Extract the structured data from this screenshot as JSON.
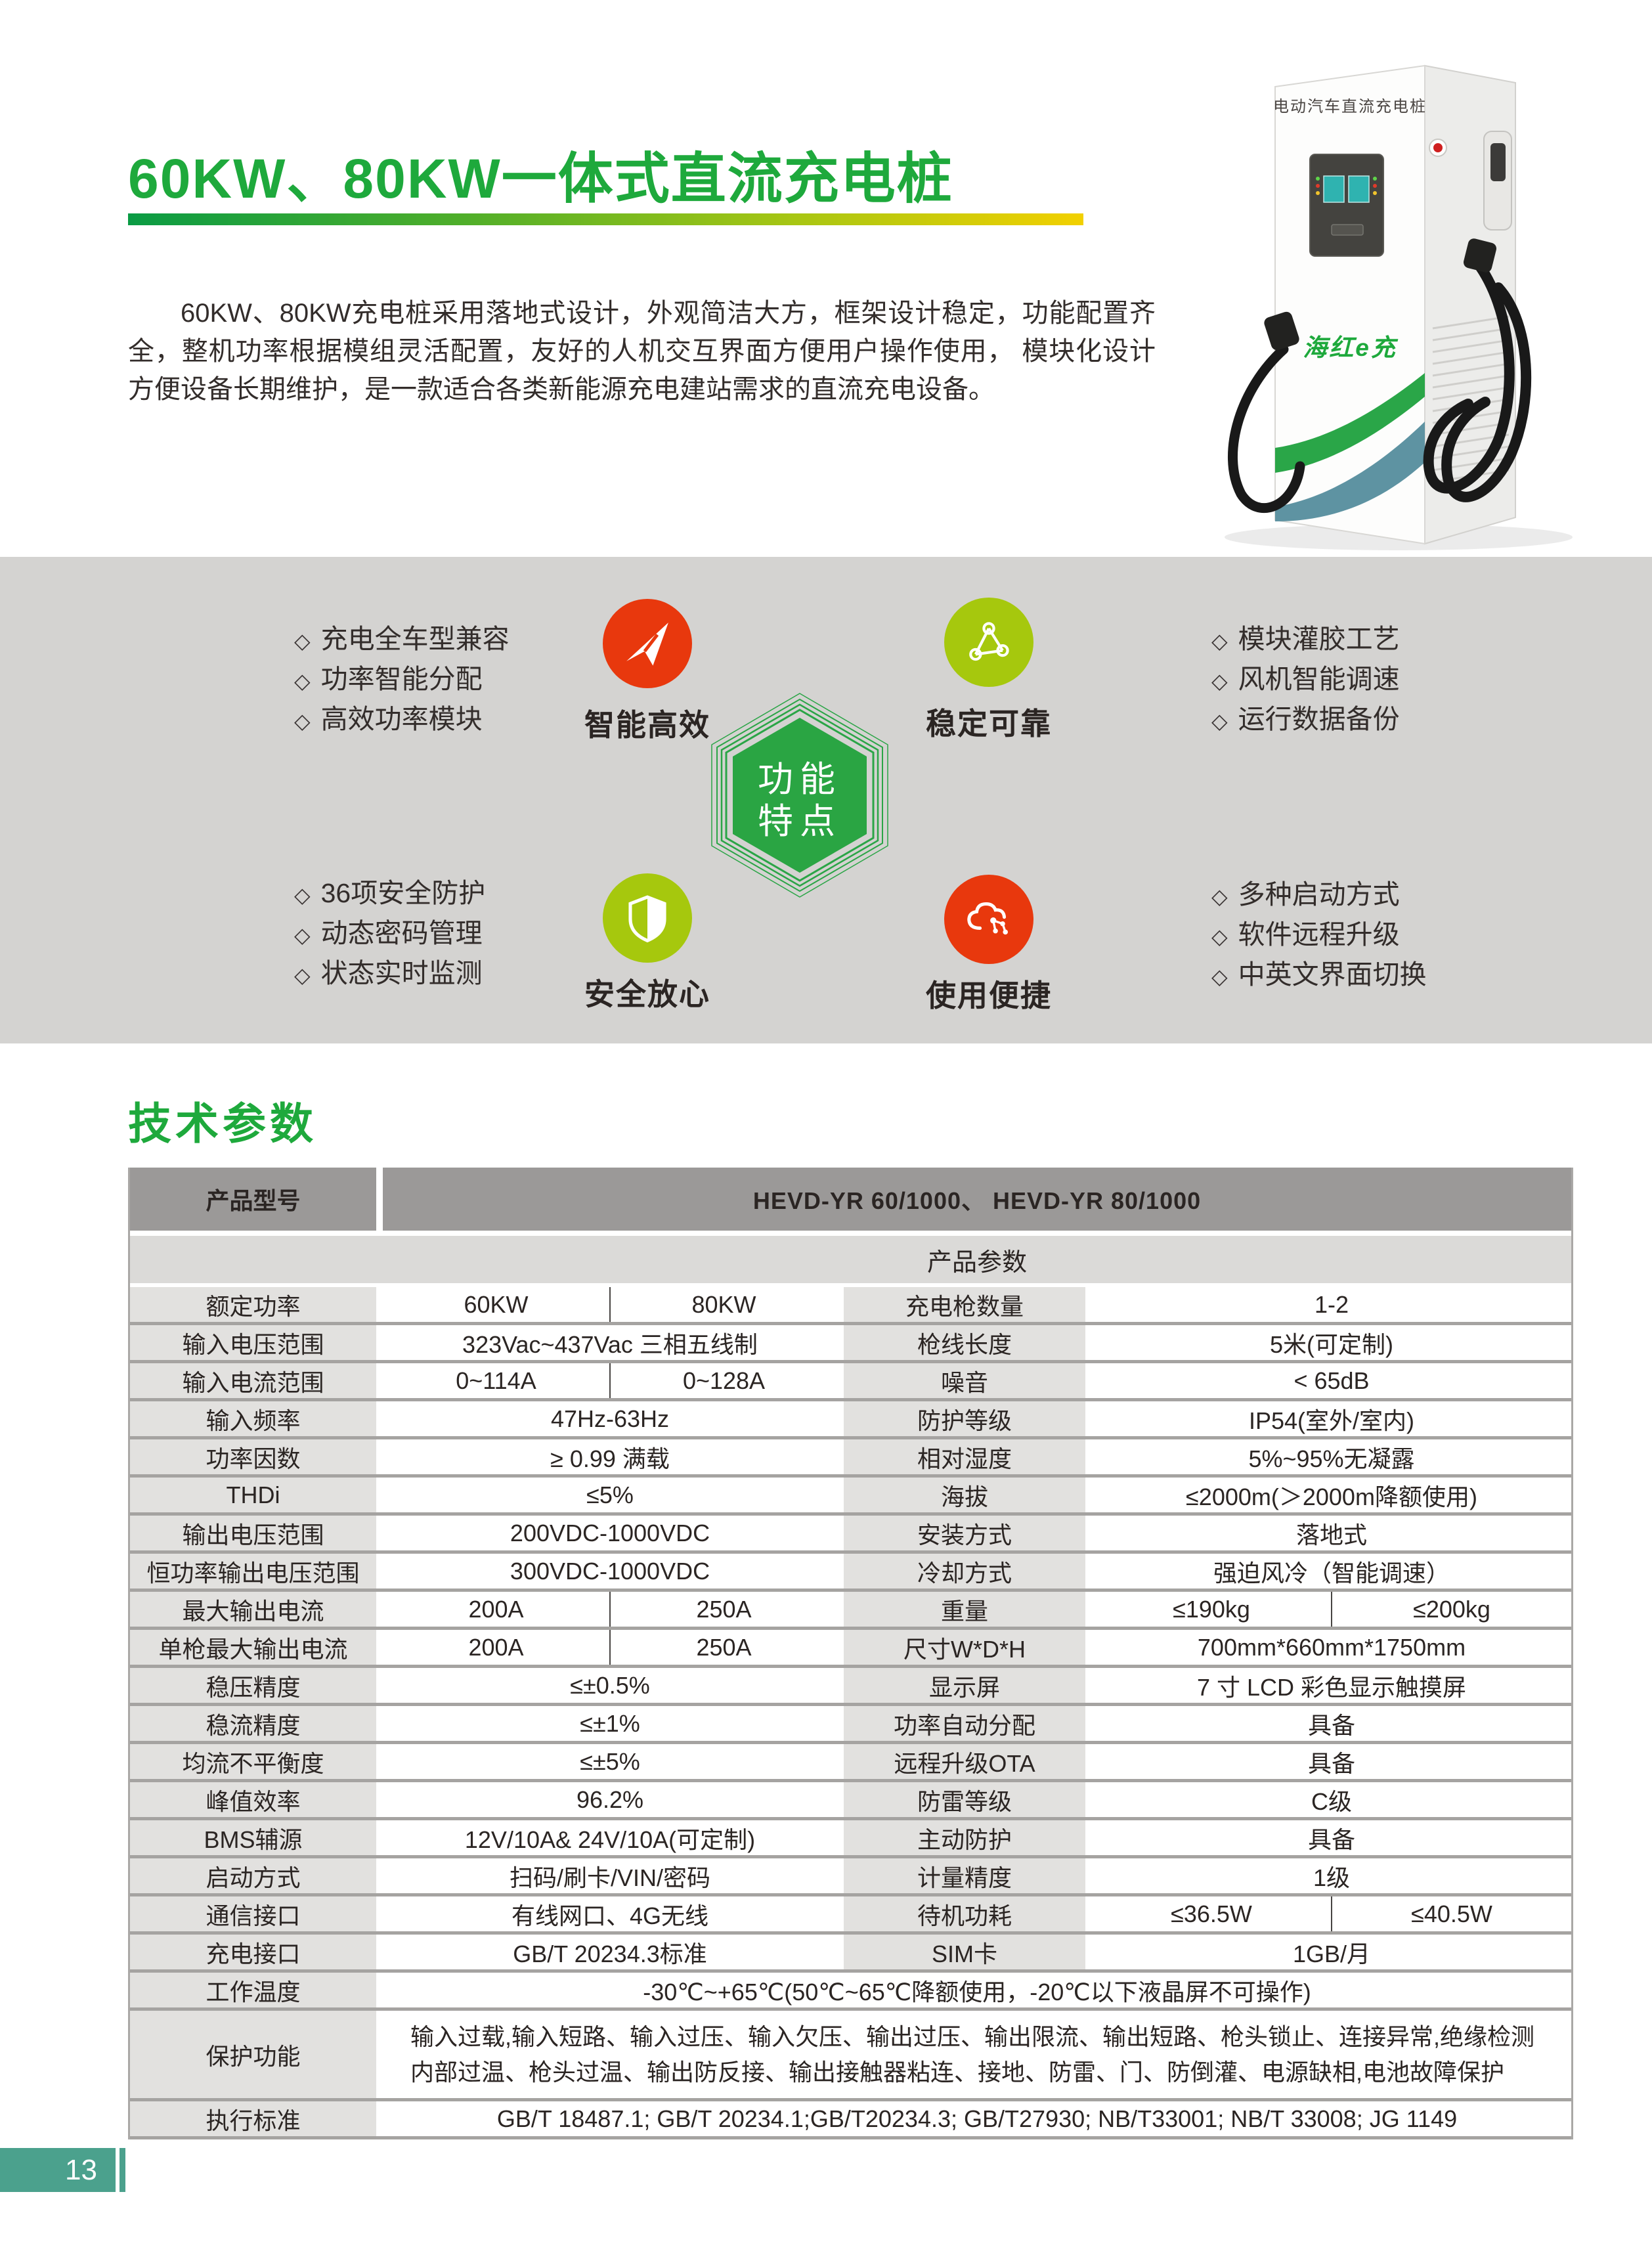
{
  "header": {
    "title": "60KW、80KW一体式直流充电桩",
    "intro": "60KW、80KW充电桩采用落地式设计，外观简洁大方，框架设计稳定，功能配置齐全，整机功率根据模组灵活配置，友好的人机交互界面方便用户操作使用， 模块化设计方便设备长期维护，是一款适合各类新能源充电建站需求的直流充电设备。"
  },
  "product_image": {
    "top_label": "电动汽车直流充电桩",
    "brand": "海红e充"
  },
  "colors": {
    "accent_green": "#1ea93c",
    "hexagon_green": "#2aa543",
    "feature_red": "#e8380d",
    "feature_lime": "#a6c80d",
    "band_gray": "#d4d3d1",
    "table_header_gray": "#9b9998",
    "footer_teal": "#4ba18d"
  },
  "features": {
    "bullet": "◇",
    "center_badge": {
      "line1": "功能",
      "line2": "特点"
    },
    "groups": [
      {
        "label": "智能高效",
        "icon": "paper-plane-icon",
        "color": "#e8380d",
        "items": [
          "充电全车型兼容",
          "功率智能分配",
          "高效功率模块"
        ]
      },
      {
        "label": "稳定可靠",
        "icon": "network-icon",
        "color": "#a6c80d",
        "items": [
          "模块灌胶工艺",
          "风机智能调速",
          "运行数据备份"
        ]
      },
      {
        "label": "安全放心",
        "icon": "shield-icon",
        "color": "#a6c80d",
        "items": [
          "36项安全防护",
          "动态密码管理",
          "状态实时监测"
        ]
      },
      {
        "label": "使用便捷",
        "icon": "cloud-network-icon",
        "color": "#e8380d",
        "items": [
          "多种启动方式",
          "软件远程升级",
          "中英文界面切换"
        ]
      }
    ]
  },
  "specs": {
    "heading": "技术参数",
    "model_label": "产品型号",
    "model_value": "HEVD-YR 60/1000、 HEVD-YR 80/1000",
    "section_title": "产品参数",
    "rows": [
      {
        "l1": "额定功率",
        "v1": [
          "60KW",
          "80KW"
        ],
        "l2": "充电枪数量",
        "v2": "1-2"
      },
      {
        "l1": "输入电压范围",
        "v1": "323Vac~437Vac 三相五线制",
        "l2": "枪线长度",
        "v2": "5米(可定制)"
      },
      {
        "l1": "输入电流范围",
        "v1": [
          "0~114A",
          "0~128A"
        ],
        "l2": "噪音",
        "v2": "< 65dB"
      },
      {
        "l1": "输入频率",
        "v1": "47Hz-63Hz",
        "l2": "防护等级",
        "v2": "IP54(室外/室内)"
      },
      {
        "l1": "功率因数",
        "v1": "≥ 0.99 满载",
        "l2": "相对湿度",
        "v2": "5%~95%无凝露"
      },
      {
        "l1": "THDi",
        "v1": "≤5%",
        "l2": "海拔",
        "v2": "≤2000m(＞2000m降额使用)"
      },
      {
        "l1": "输出电压范围",
        "v1": "200VDC-1000VDC",
        "l2": "安装方式",
        "v2": "落地式"
      },
      {
        "l1": "恒功率输出电压范围",
        "v1": "300VDC-1000VDC",
        "l2": "冷却方式",
        "v2": "强迫风冷（智能调速）"
      },
      {
        "l1": "最大输出电流",
        "v1": [
          "200A",
          "250A"
        ],
        "l2": "重量",
        "v2": [
          "≤190kg",
          "≤200kg"
        ]
      },
      {
        "l1": "单枪最大输出电流",
        "v1": [
          "200A",
          "250A"
        ],
        "l2": "尺寸W*D*H",
        "v2": "700mm*660mm*1750mm"
      },
      {
        "l1": "稳压精度",
        "v1": "≤±0.5%",
        "l2": "显示屏",
        "v2": "7 寸 LCD 彩色显示触摸屏"
      },
      {
        "l1": "稳流精度",
        "v1": "≤±1%",
        "l2": "功率自动分配",
        "v2": "具备"
      },
      {
        "l1": "均流不平衡度",
        "v1": "≤±5%",
        "l2": "远程升级OTA",
        "v2": "具备"
      },
      {
        "l1": "峰值效率",
        "v1": "96.2%",
        "l2": "防雷等级",
        "v2": "C级"
      },
      {
        "l1": "BMS辅源",
        "v1": "12V/10A& 24V/10A(可定制)",
        "l2": "主动防护",
        "v2": "具备"
      },
      {
        "l1": "启动方式",
        "v1": "扫码/刷卡/VIN/密码",
        "l2": "计量精度",
        "v2": "1级"
      },
      {
        "l1": "通信接口",
        "v1": "有线网口、4G无线",
        "l2": "待机功耗",
        "v2": [
          "≤36.5W",
          "≤40.5W"
        ]
      },
      {
        "l1": "充电接口",
        "v1": "GB/T 20234.3标准",
        "l2": "SIM卡",
        "v2": "1GB/月"
      },
      {
        "l1": "工作温度",
        "v": "-30℃~+65℃(50℃~65℃降额使用，-20℃以下液晶屏不可操作)"
      },
      {
        "l1": "保护功能",
        "v": "输入过载,输入短路、输入过压、输入欠压、输出过压、输出限流、输出短路、枪头锁止、连接异常,绝缘检测内部过温、枪头过温、输出防反接、输出接触器粘连、接地、防雷、门、防倒灌、电源缺相,电池故障保护",
        "tall": true
      },
      {
        "l1": "执行标准",
        "v": "GB/T 18487.1; GB/T 20234.1;GB/T20234.3; GB/T27930; NB/T33001; NB/T 33008; JG 1149"
      }
    ]
  },
  "footer": {
    "page_number": "13"
  }
}
